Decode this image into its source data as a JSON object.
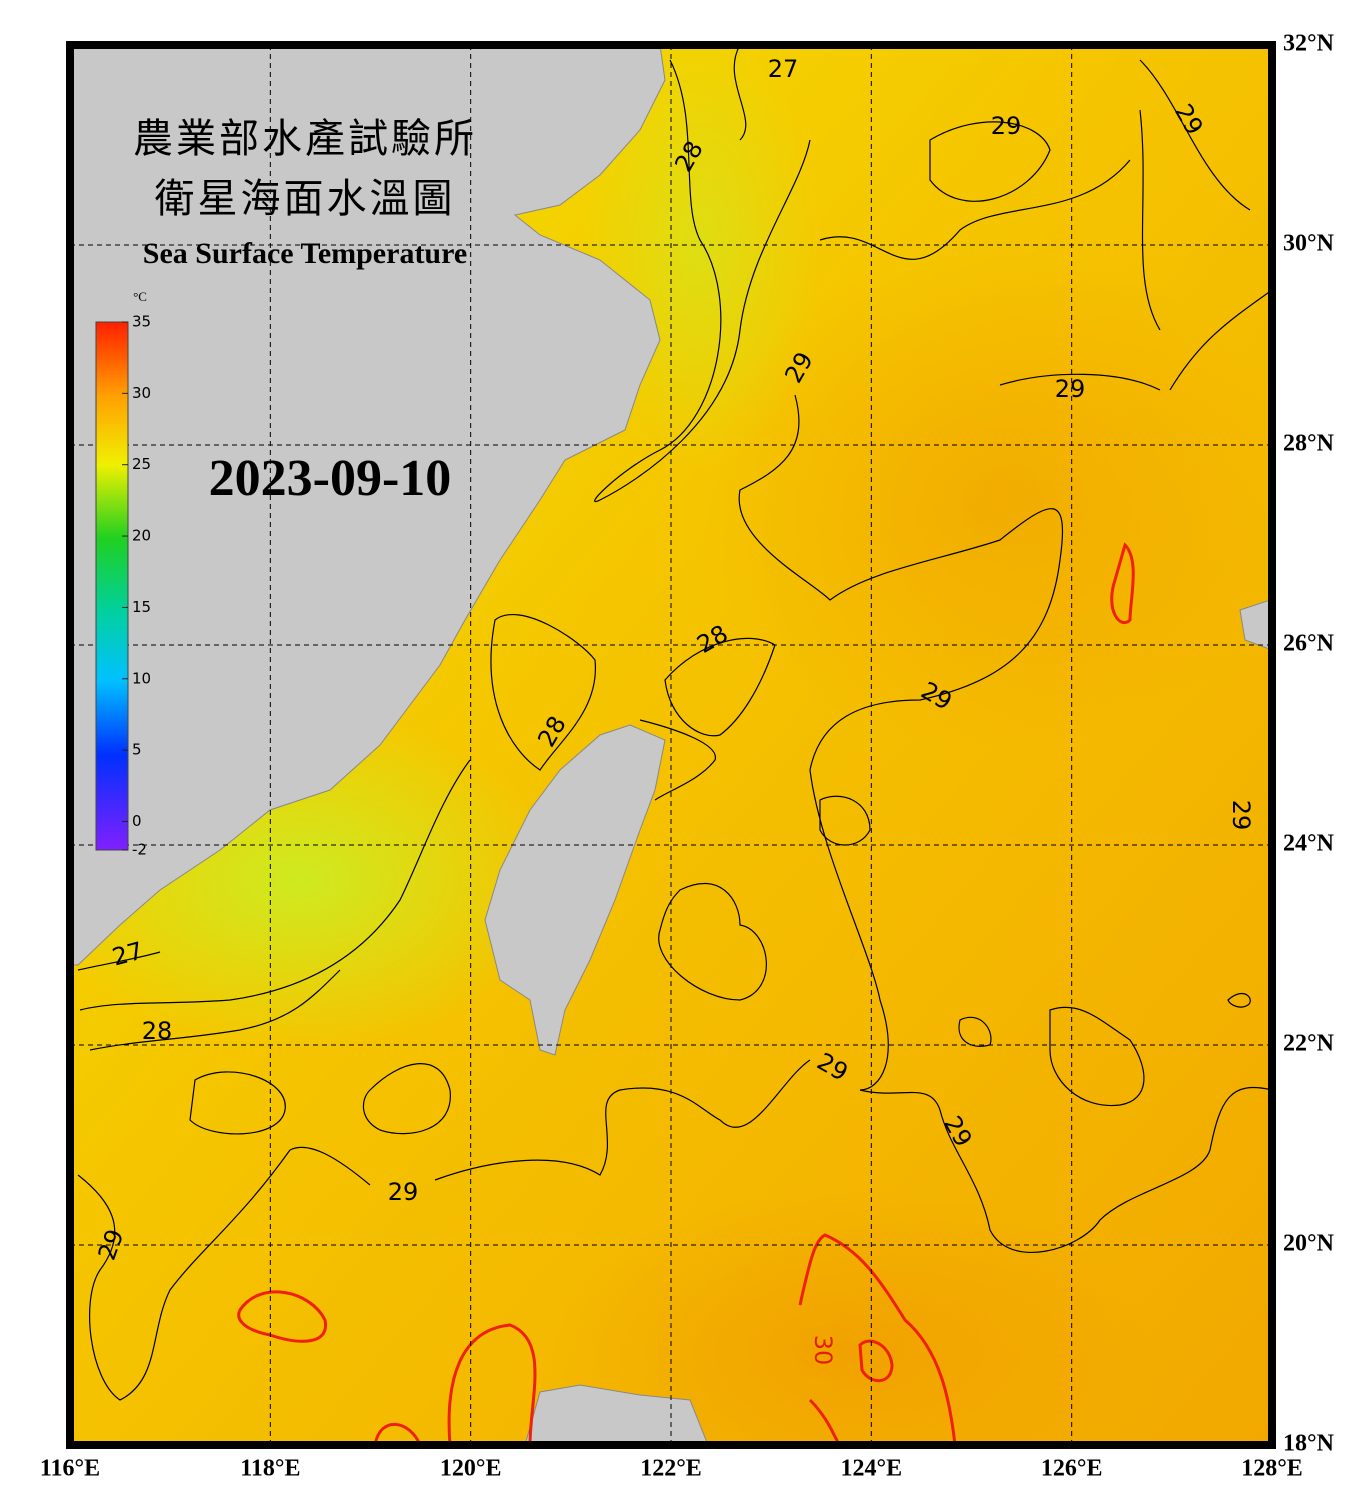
{
  "map": {
    "title_line1": "農業部水產試驗所",
    "title_line2": "衛星海面水溫圖",
    "title_english": "Sea Surface Temperature",
    "date": "2023-09-10",
    "xlim": [
      116,
      128
    ],
    "ylim": [
      18,
      32
    ],
    "lon_ticks": [
      {
        "value": 116,
        "label": "116°E"
      },
      {
        "value": 118,
        "label": "118°E"
      },
      {
        "value": 120,
        "label": "120°E"
      },
      {
        "value": 122,
        "label": "122°E"
      },
      {
        "value": 124,
        "label": "124°E"
      },
      {
        "value": 126,
        "label": "126°E"
      },
      {
        "value": 128,
        "label": "128°E"
      }
    ],
    "lat_ticks": [
      {
        "value": 32,
        "label": "32°N"
      },
      {
        "value": 30,
        "label": "30°N"
      },
      {
        "value": 28,
        "label": "28°N"
      },
      {
        "value": 26,
        "label": "26°N"
      },
      {
        "value": 24,
        "label": "24°N"
      },
      {
        "value": 22,
        "label": "22°N"
      },
      {
        "value": 20,
        "label": "20°N"
      },
      {
        "value": 18,
        "label": "18°N"
      }
    ],
    "grid": true,
    "colorbar": {
      "unit": "°C",
      "lim": [
        -2,
        35
      ],
      "ticks": [
        35,
        30,
        25,
        20,
        15,
        10,
        5,
        0,
        -2
      ]
    },
    "contour_labels": [
      27,
      28,
      29,
      29,
      29,
      29,
      28,
      29,
      28,
      29,
      27,
      28,
      29,
      29,
      29,
      29,
      30
    ]
  }
}
